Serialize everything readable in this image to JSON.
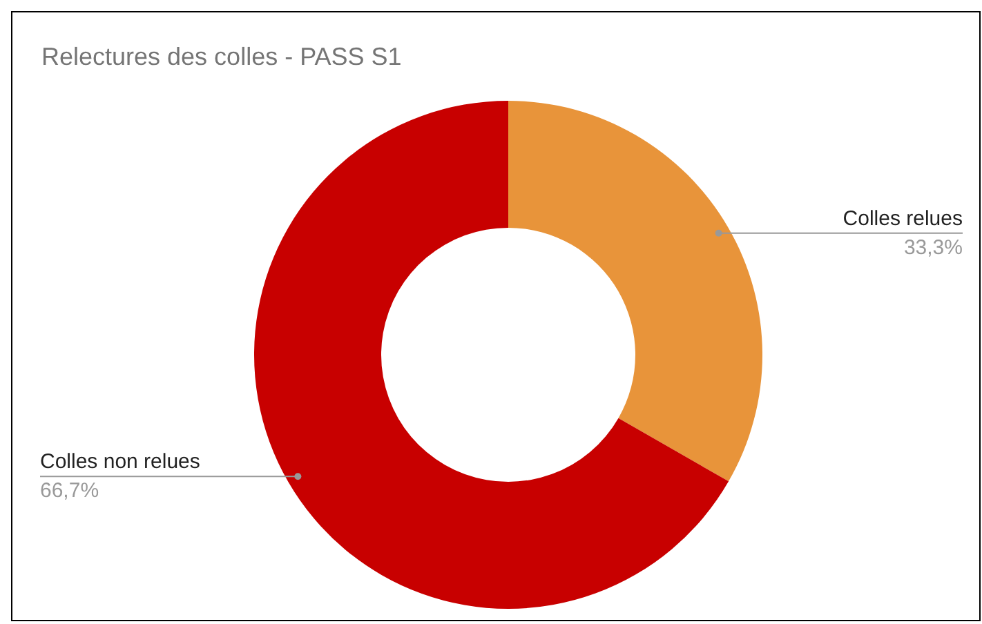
{
  "chart_data": {
    "type": "donut",
    "title": "Relectures des colles - PASS S1",
    "categories": [
      "Colles relues",
      "Colles non relues"
    ],
    "values": [
      33.3,
      66.7
    ],
    "value_labels": [
      "33,3%",
      "66,7%"
    ],
    "colors": [
      "#e8943a",
      "#c80000"
    ]
  }
}
